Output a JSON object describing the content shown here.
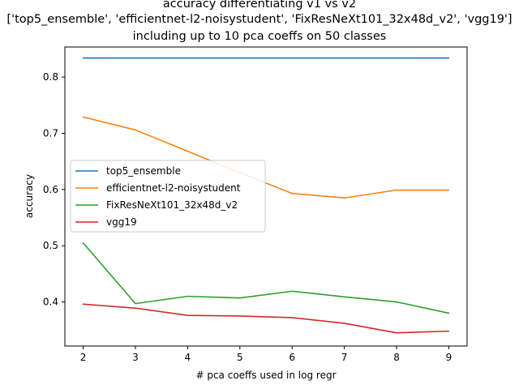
{
  "chart_data": {
    "type": "line",
    "title_lines": [
      "accuracy differentiating v1 vs v2",
      "['top5_ensemble', 'efficientnet-l2-noisystudent', 'FixResNeXt101_32x48d_v2', 'vgg19']",
      "including up to 10 pca coeffs on 50 classes"
    ],
    "xlabel": "# pca coeffs used in log regr",
    "ylabel": "accuracy",
    "x": [
      2,
      3,
      4,
      5,
      6,
      7,
      8,
      9
    ],
    "xticks": [
      2,
      3,
      4,
      5,
      6,
      7,
      8,
      9
    ],
    "yticks": [
      0.4,
      0.5,
      0.6,
      0.7,
      0.8
    ],
    "xlim": [
      1.65,
      9.35
    ],
    "ylim": [
      0.3215,
      0.8535
    ],
    "grid": false,
    "legend_position": "center-left",
    "series": [
      {
        "name": "top5_ensemble",
        "color": "#1f77b4",
        "values": [
          0.834,
          0.834,
          0.834,
          0.834,
          0.834,
          0.834,
          0.834,
          0.834
        ]
      },
      {
        "name": "efficientnet-l2-noisystudent",
        "color": "#ff7f0e",
        "values": [
          0.729,
          0.706,
          0.668,
          0.63,
          0.593,
          0.585,
          0.599,
          0.599
        ]
      },
      {
        "name": "FixResNeXt101_32x48d_v2",
        "color": "#2ca02c",
        "values": [
          0.505,
          0.397,
          0.41,
          0.407,
          0.419,
          0.409,
          0.4,
          0.38
        ]
      },
      {
        "name": "vgg19",
        "color": "#d62728",
        "values": [
          0.396,
          0.389,
          0.376,
          0.375,
          0.372,
          0.362,
          0.345,
          0.348
        ]
      }
    ]
  }
}
